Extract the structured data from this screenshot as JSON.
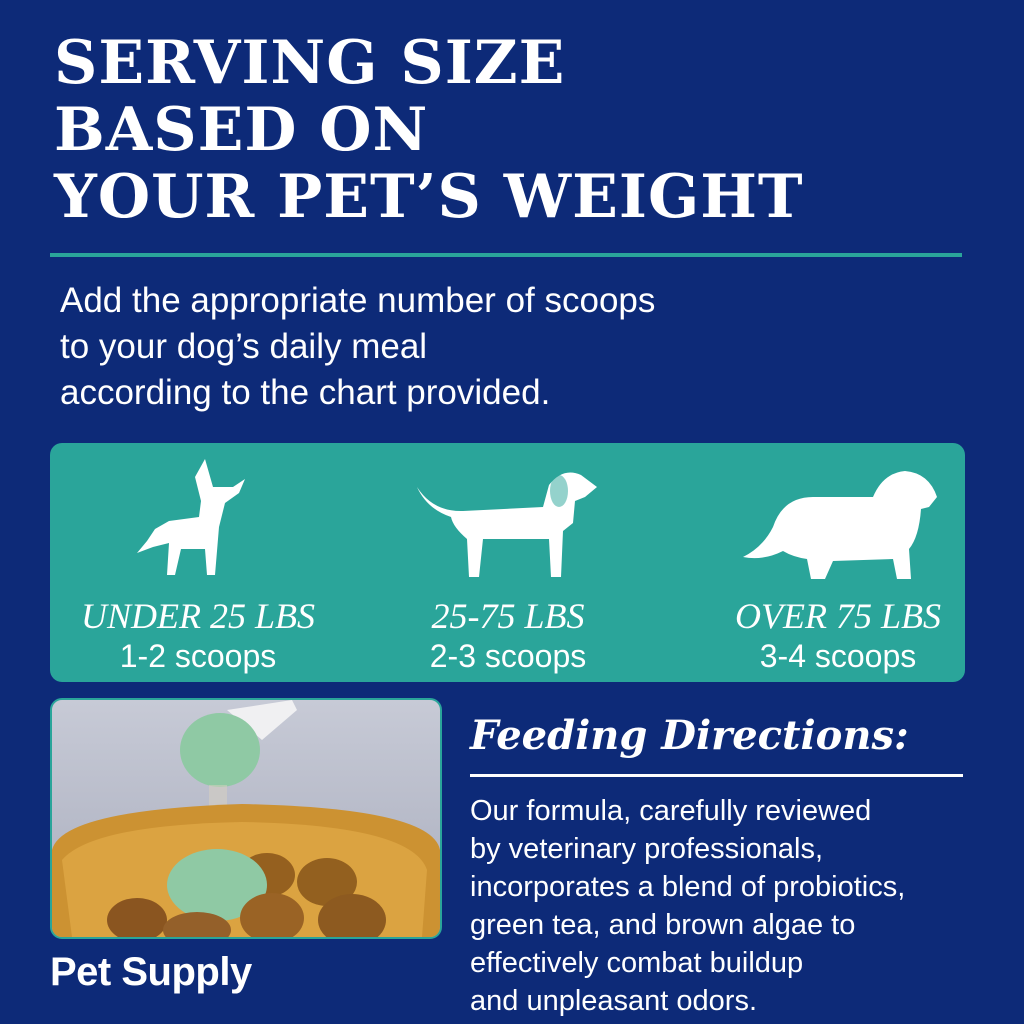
{
  "header": {
    "title_lines": [
      "SERVING SIZE",
      "BASED ON",
      "YOUR PET’S WEIGHT"
    ]
  },
  "intro": {
    "lines": [
      "Add the appropriate number of scoops",
      "to your dog’s daily meal",
      "according to the chart provided."
    ]
  },
  "servings": [
    {
      "icon": "small-dog-icon",
      "weight": "UNDER 25 LBS",
      "scoops": "1-2 scoops"
    },
    {
      "icon": "medium-dog-icon",
      "weight": "25-75 LBS",
      "scoops": "2-3 scoops"
    },
    {
      "icon": "large-dog-icon",
      "weight": "OVER 75 LBS",
      "scoops": "3-4 scoops"
    }
  ],
  "brand": "Pet Supply",
  "feeding": {
    "title": "Feeding Directions:",
    "lines": [
      "Our formula, carefully reviewed",
      "by veterinary professionals,",
      "incorporates a blend of probiotics,",
      "green tea, and brown algae to",
      "effectively combat buildup",
      "and unpleasant odors."
    ]
  },
  "colors": {
    "background": "#0d2a78",
    "accent": "#2aa59a"
  }
}
